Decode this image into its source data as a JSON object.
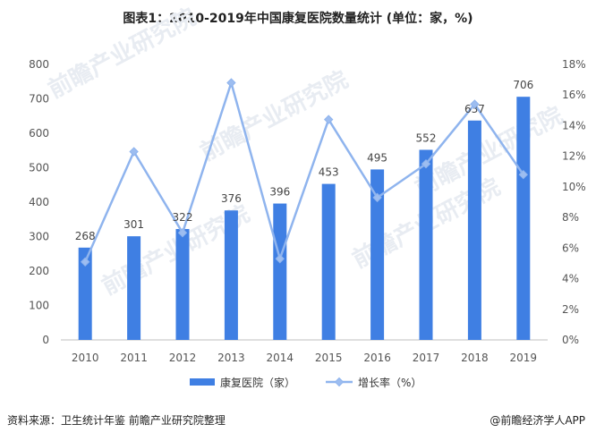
{
  "title": "图表1：2010-2019年中国康复医院数量统计 (单位：家，%)",
  "source": "资料来源：卫生统计年鉴 前瞻产业研究院整理",
  "credit": "@前瞻经济学人APP",
  "watermark": "前瞻产业研究院",
  "colors": {
    "bar": "#3f7fe3",
    "line": "#8fb4ee",
    "marker": "#9dbdf0"
  },
  "chart_data": {
    "type": "bar",
    "categories": [
      "2010",
      "2011",
      "2012",
      "2013",
      "2014",
      "2015",
      "2016",
      "2017",
      "2018",
      "2019"
    ],
    "series": [
      {
        "name": "康复医院（家）",
        "type": "bar",
        "axis": "left",
        "values": [
          268,
          301,
          322,
          376,
          396,
          453,
          495,
          552,
          637,
          706
        ]
      },
      {
        "name": "增长率（%）",
        "type": "line",
        "axis": "right",
        "values": [
          5.1,
          12.3,
          7.0,
          16.8,
          5.3,
          14.4,
          9.3,
          11.5,
          15.4,
          10.8
        ]
      }
    ],
    "yleft": {
      "min": 0,
      "max": 800,
      "step": 100,
      "ticks": [
        "0",
        "100",
        "200",
        "300",
        "400",
        "500",
        "600",
        "700",
        "800"
      ]
    },
    "yright": {
      "min": 0,
      "max": 18,
      "step": 2,
      "ticks": [
        "0%",
        "2%",
        "4%",
        "6%",
        "8%",
        "10%",
        "12%",
        "14%",
        "16%",
        "18%"
      ]
    },
    "legend_position": "bottom"
  }
}
